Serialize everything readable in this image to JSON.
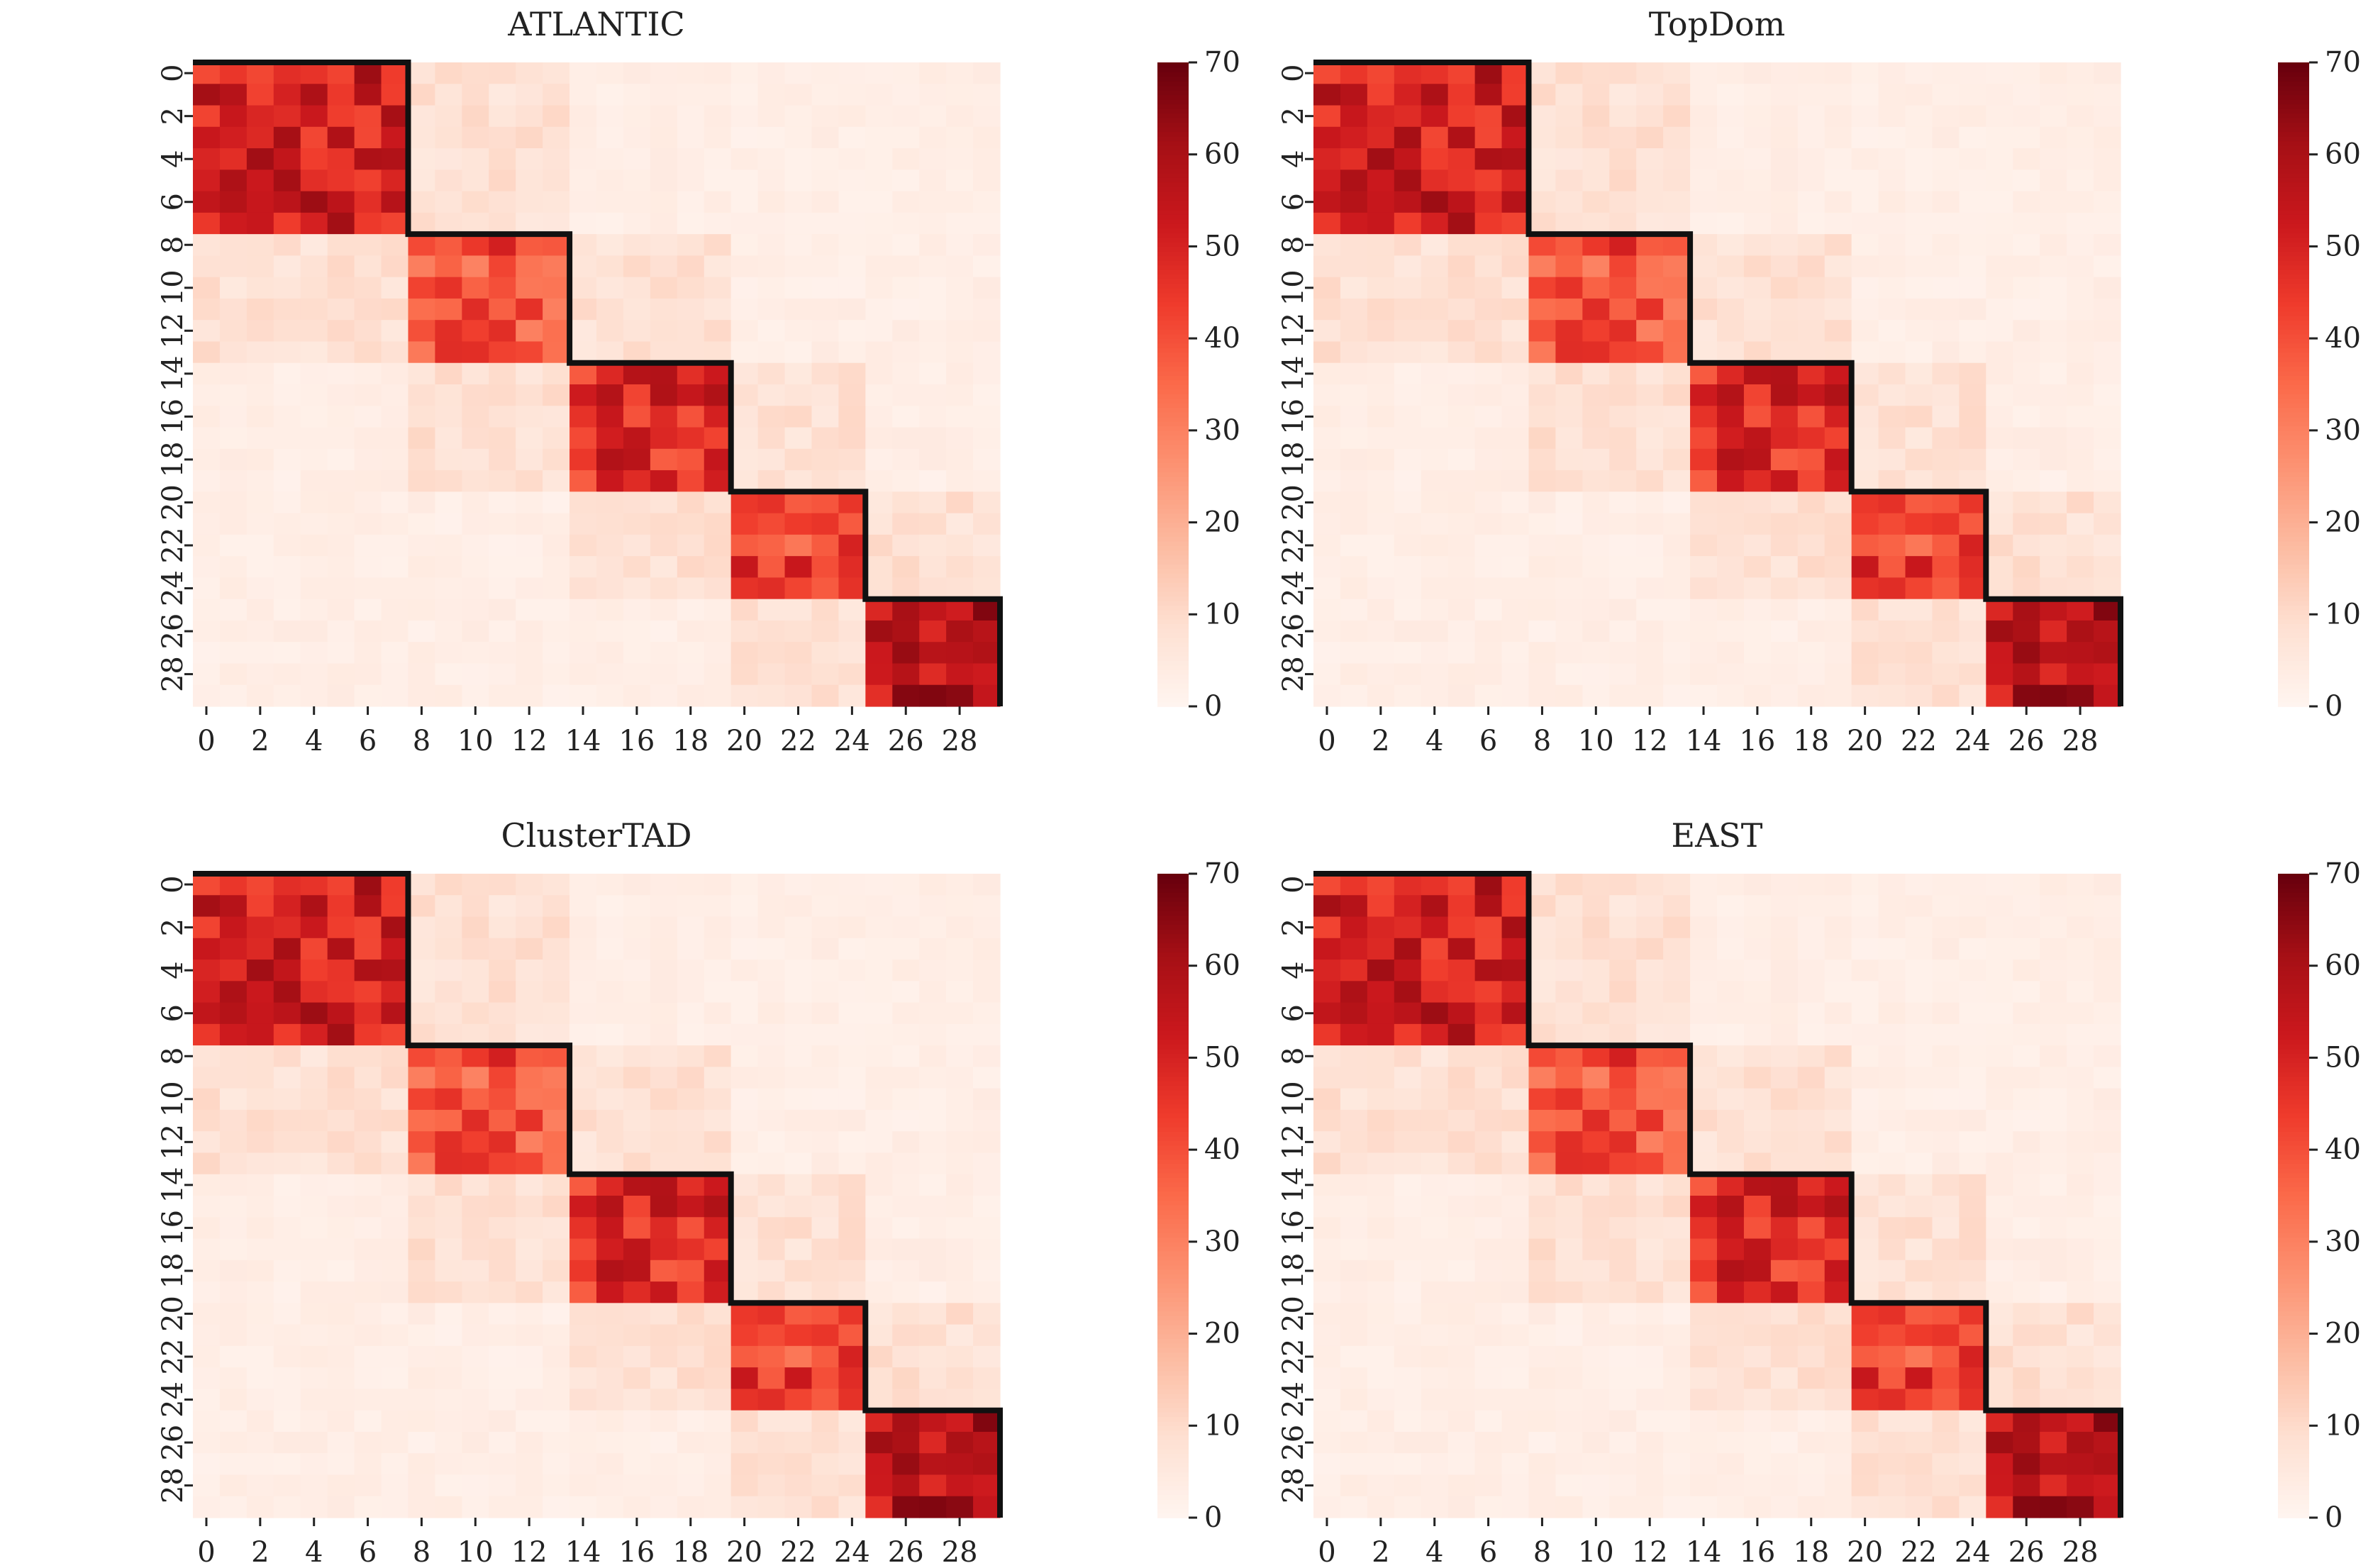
{
  "figure": {
    "panel_titles": [
      "ATLANTIC",
      "TopDom",
      "ClusterTAD",
      "EAST"
    ]
  },
  "chart_data": [
    {
      "type": "heatmap",
      "title": "ATLANTIC",
      "n_bins": 30,
      "x_tick_labels": [
        "0",
        "2",
        "4",
        "6",
        "8",
        "10",
        "12",
        "14",
        "16",
        "18",
        "20",
        "22",
        "24",
        "26",
        "28"
      ],
      "y_tick_labels": [
        "0",
        "2",
        "4",
        "6",
        "8",
        "10",
        "12",
        "14",
        "16",
        "18",
        "20",
        "22",
        "24",
        "26",
        "28"
      ],
      "tads": [
        [
          0,
          7
        ],
        [
          8,
          13
        ],
        [
          14,
          19
        ],
        [
          20,
          24
        ],
        [
          25,
          29
        ]
      ],
      "colorbar": {
        "min": 0,
        "max": 70,
        "ticks": [
          0,
          10,
          20,
          30,
          40,
          50,
          60,
          70
        ]
      },
      "colormap": "Reds",
      "block_mean_values": [
        52,
        40,
        48,
        43,
        56
      ],
      "background_value": 3,
      "near_diagonal_value": 8
    },
    {
      "type": "heatmap",
      "title": "TopDom",
      "n_bins": 30,
      "x_tick_labels": [
        "0",
        "2",
        "4",
        "6",
        "8",
        "10",
        "12",
        "14",
        "16",
        "18",
        "20",
        "22",
        "24",
        "26",
        "28"
      ],
      "y_tick_labels": [
        "0",
        "2",
        "4",
        "6",
        "8",
        "10",
        "12",
        "14",
        "16",
        "18",
        "20",
        "22",
        "24",
        "26",
        "28"
      ],
      "tads": [
        [
          0,
          7
        ],
        [
          8,
          13
        ],
        [
          14,
          19
        ],
        [
          20,
          24
        ],
        [
          25,
          29
        ]
      ],
      "colorbar": {
        "min": 0,
        "max": 70,
        "ticks": [
          0,
          10,
          20,
          30,
          40,
          50,
          60,
          70
        ]
      },
      "colormap": "Reds",
      "block_mean_values": [
        52,
        40,
        48,
        43,
        56
      ],
      "background_value": 3,
      "near_diagonal_value": 8
    },
    {
      "type": "heatmap",
      "title": "ClusterTAD",
      "n_bins": 30,
      "x_tick_labels": [
        "0",
        "2",
        "4",
        "6",
        "8",
        "10",
        "12",
        "14",
        "16",
        "18",
        "20",
        "22",
        "24",
        "26",
        "28"
      ],
      "y_tick_labels": [
        "0",
        "2",
        "4",
        "6",
        "8",
        "10",
        "12",
        "14",
        "16",
        "18",
        "20",
        "22",
        "24",
        "26",
        "28"
      ],
      "tads": [
        [
          0,
          7
        ],
        [
          8,
          13
        ],
        [
          14,
          19
        ],
        [
          20,
          24
        ],
        [
          25,
          29
        ]
      ],
      "colorbar": {
        "min": 0,
        "max": 70,
        "ticks": [
          0,
          10,
          20,
          30,
          40,
          50,
          60,
          70
        ]
      },
      "colormap": "Reds",
      "block_mean_values": [
        52,
        40,
        48,
        43,
        56
      ],
      "background_value": 3,
      "near_diagonal_value": 8
    },
    {
      "type": "heatmap",
      "title": "EAST",
      "n_bins": 30,
      "x_tick_labels": [
        "0",
        "2",
        "4",
        "6",
        "8",
        "10",
        "12",
        "14",
        "16",
        "18",
        "20",
        "22",
        "24",
        "26",
        "28"
      ],
      "y_tick_labels": [
        "0",
        "2",
        "4",
        "6",
        "8",
        "10",
        "12",
        "14",
        "16",
        "18",
        "20",
        "22",
        "24",
        "26",
        "28"
      ],
      "tads": [
        [
          0,
          7
        ],
        [
          8,
          13
        ],
        [
          14,
          19
        ],
        [
          20,
          24
        ],
        [
          25,
          29
        ]
      ],
      "colorbar": {
        "min": 0,
        "max": 70,
        "ticks": [
          0,
          10,
          20,
          30,
          40,
          50,
          60,
          70
        ]
      },
      "colormap": "Reds",
      "block_mean_values": [
        52,
        40,
        48,
        43,
        56
      ],
      "background_value": 3,
      "near_diagonal_value": 8
    }
  ]
}
